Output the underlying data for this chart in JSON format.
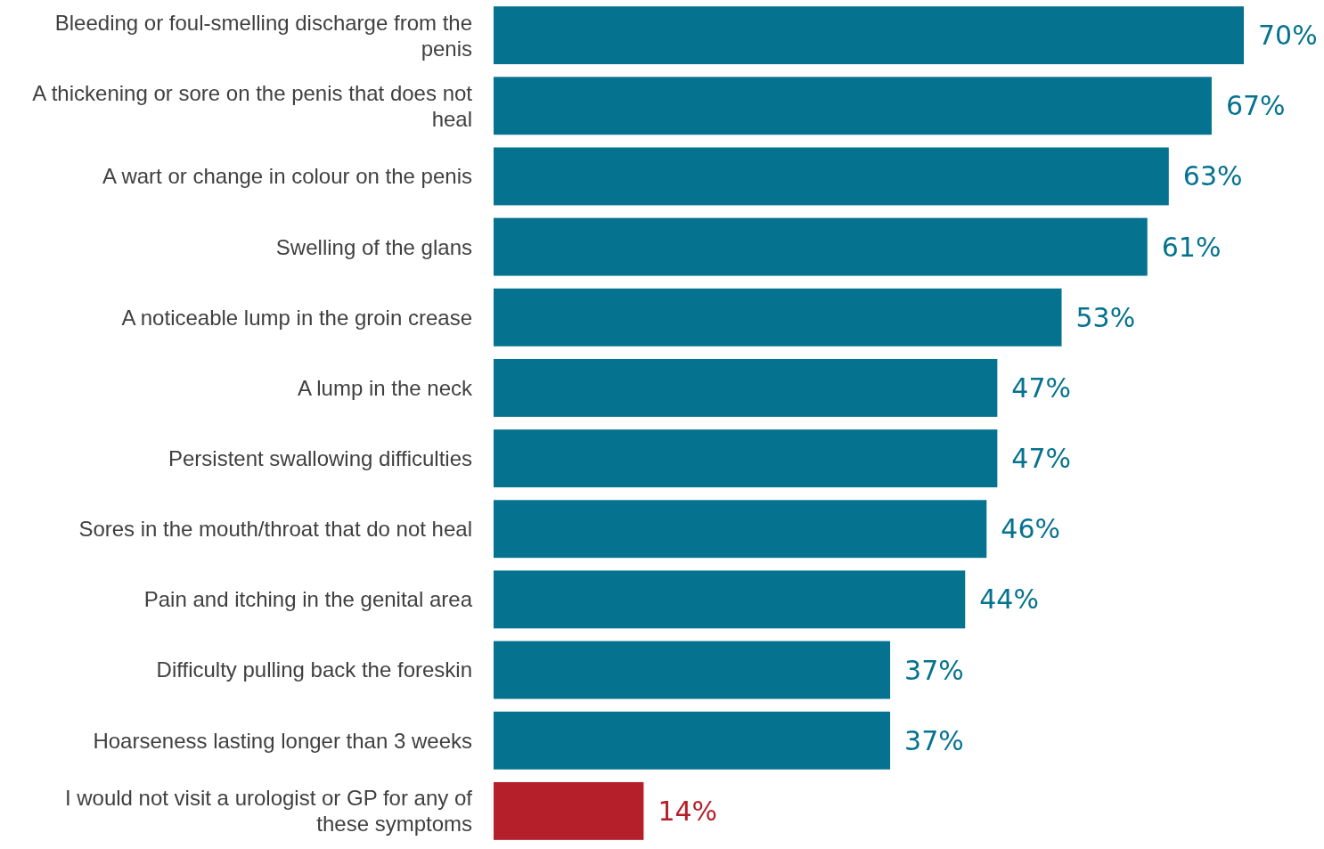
{
  "chart_data": {
    "type": "bar",
    "orientation": "horizontal",
    "categories": [
      "Bleeding or foul-smelling discharge from the penis",
      "A thickening or sore on the penis that does not heal",
      "A wart or change in colour on the penis",
      "Swelling of the glans",
      "A noticeable lump in the groin crease",
      "A lump in the neck",
      "Persistent swallowing difficulties",
      "Sores in the mouth/throat that do not heal",
      "Pain and itching in the genital area",
      "Difficulty pulling back the foreskin",
      "Hoarseness lasting longer than 3 weeks",
      "I would not visit a urologist or GP for any of these symptoms"
    ],
    "values": [
      70,
      67,
      63,
      61,
      53,
      47,
      47,
      46,
      44,
      37,
      37,
      14
    ],
    "value_labels": [
      "70%",
      "67%",
      "63%",
      "61%",
      "53%",
      "47%",
      "47%",
      "46%",
      "44%",
      "37%",
      "37%",
      "14%"
    ],
    "colors": [
      "#05728f",
      "#05728f",
      "#05728f",
      "#05728f",
      "#05728f",
      "#05728f",
      "#05728f",
      "#05728f",
      "#05728f",
      "#05728f",
      "#05728f",
      "#b51f29"
    ]
  }
}
